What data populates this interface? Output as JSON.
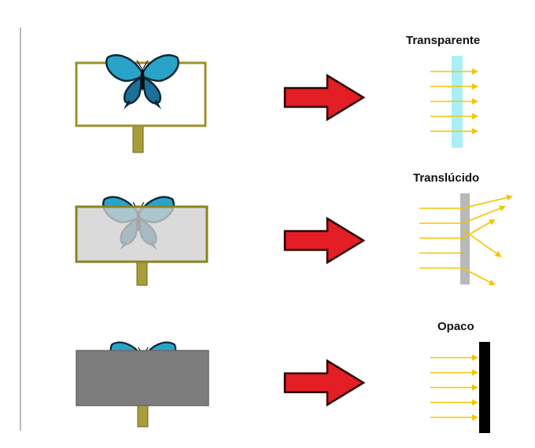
{
  "rows": [
    {
      "label": "Transparente"
    },
    {
      "label": "Translúcido"
    },
    {
      "label": "Opaco"
    }
  ],
  "colors": {
    "frame": "#9c8f2e",
    "post": "#a89d3a",
    "arrow_red": "#e31e24",
    "ray": "#f5c400",
    "transparent_slab": "#a8f0f5",
    "translucent_slab": "#b9b9b9",
    "translucent_panel": "#cfcfcf",
    "opaque_panel": "#7d7d7d",
    "opaque_slab": "#000000"
  }
}
